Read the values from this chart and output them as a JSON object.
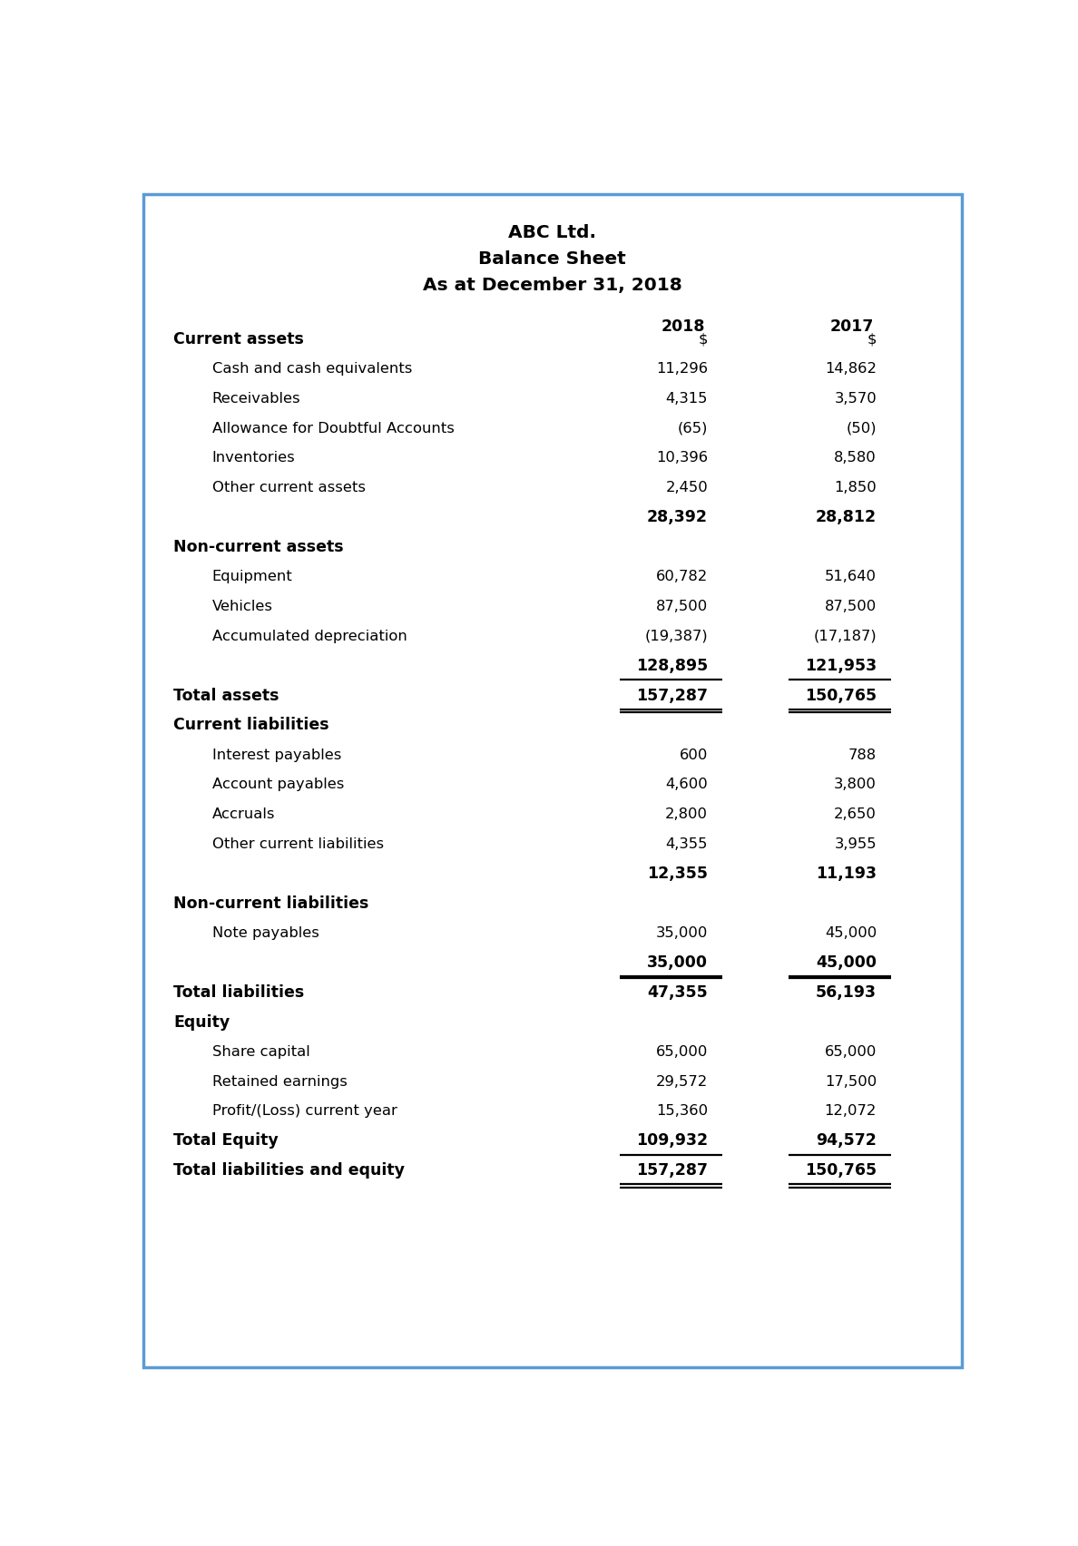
{
  "title_lines": [
    "ABC Ltd.",
    "Balance Sheet",
    "As at December 31, 2018"
  ],
  "col_header_y_label": "2018_2017",
  "rows": [
    {
      "label": "Current assets",
      "val2018": "$",
      "val2017": "$",
      "style": "header_dollar",
      "indent": 0
    },
    {
      "label": "Cash and cash equivalents",
      "val2018": "11,296",
      "val2017": "14,862",
      "style": "normal",
      "indent": 1
    },
    {
      "label": "Receivables",
      "val2018": "4,315",
      "val2017": "3,570",
      "style": "normal",
      "indent": 1
    },
    {
      "label": "Allowance for Doubtful Accounts",
      "val2018": "(65)",
      "val2017": "(50)",
      "style": "normal",
      "indent": 1
    },
    {
      "label": "Inventories",
      "val2018": "10,396",
      "val2017": "8,580",
      "style": "normal",
      "indent": 1
    },
    {
      "label": "Other current assets",
      "val2018": "2,450",
      "val2017": "1,850",
      "style": "normal",
      "indent": 1
    },
    {
      "label": "",
      "val2018": "28,392",
      "val2017": "28,812",
      "style": "subtotal",
      "indent": 0
    },
    {
      "label": "Non-current assets",
      "val2018": "",
      "val2017": "",
      "style": "header",
      "indent": 0
    },
    {
      "label": "Equipment",
      "val2018": "60,782",
      "val2017": "51,640",
      "style": "normal",
      "indent": 1
    },
    {
      "label": "Vehicles",
      "val2018": "87,500",
      "val2017": "87,500",
      "style": "normal",
      "indent": 1
    },
    {
      "label": "Accumulated depreciation",
      "val2018": "(19,387)",
      "val2017": "(17,187)",
      "style": "normal",
      "indent": 1
    },
    {
      "label": "",
      "val2018": "128,895",
      "val2017": "121,953",
      "style": "subtotal_line",
      "indent": 0
    },
    {
      "label": "Total assets",
      "val2018": "157,287",
      "val2017": "150,765",
      "style": "total_double",
      "indent": 0
    },
    {
      "label": "Current liabilities",
      "val2018": "",
      "val2017": "",
      "style": "header",
      "indent": 0
    },
    {
      "label": "Interest payables",
      "val2018": "600",
      "val2017": "788",
      "style": "normal",
      "indent": 1
    },
    {
      "label": "Account payables",
      "val2018": "4,600",
      "val2017": "3,800",
      "style": "normal",
      "indent": 1
    },
    {
      "label": "Accruals",
      "val2018": "2,800",
      "val2017": "2,650",
      "style": "normal",
      "indent": 1
    },
    {
      "label": "Other current liabilities",
      "val2018": "4,355",
      "val2017": "3,955",
      "style": "normal",
      "indent": 1
    },
    {
      "label": "",
      "val2018": "12,355",
      "val2017": "11,193",
      "style": "subtotal",
      "indent": 0
    },
    {
      "label": "Non-current liabilities",
      "val2018": "",
      "val2017": "",
      "style": "header",
      "indent": 0
    },
    {
      "label": "Note payables",
      "val2018": "35,000",
      "val2017": "45,000",
      "style": "normal",
      "indent": 1
    },
    {
      "label": "",
      "val2018": "35,000",
      "val2017": "45,000",
      "style": "subtotal_line",
      "indent": 0
    },
    {
      "label": "Total liabilities",
      "val2018": "47,355",
      "val2017": "56,193",
      "style": "total_bold",
      "indent": 0
    },
    {
      "label": "Equity",
      "val2018": "",
      "val2017": "",
      "style": "header",
      "indent": 0
    },
    {
      "label": "Share capital",
      "val2018": "65,000",
      "val2017": "65,000",
      "style": "normal",
      "indent": 1
    },
    {
      "label": "Retained earnings",
      "val2018": "29,572",
      "val2017": "17,500",
      "style": "normal",
      "indent": 1
    },
    {
      "label": "Profit/(Loss) current year",
      "val2018": "15,360",
      "val2017": "12,072",
      "style": "normal",
      "indent": 1
    },
    {
      "label": "Total Equity",
      "val2018": "109,932",
      "val2017": "94,572",
      "style": "total_line",
      "indent": 0
    },
    {
      "label": "Total liabilities and equity",
      "val2018": "157,287",
      "val2017": "150,765",
      "style": "total_double",
      "indent": 0
    }
  ],
  "border_color": "#5b9bd5",
  "background_color": "#ffffff",
  "text_color": "#000000"
}
